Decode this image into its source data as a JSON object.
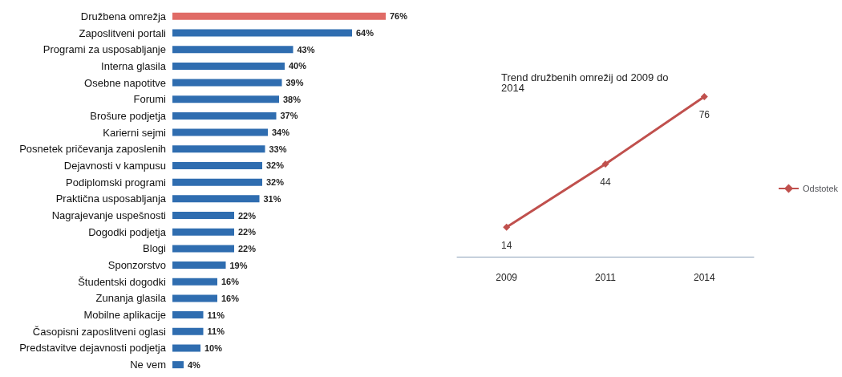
{
  "chart_data": [
    {
      "type": "bar",
      "orientation": "horizontal",
      "tick_labels": "y",
      "legend": false,
      "categories": [
        "Družbena omrežja",
        "Zaposlitveni portali",
        "Programi za usposabljanje",
        "Interna glasila",
        "Osebne napotitve",
        "Forumi",
        "Brošure podjetja",
        "Karierni sejmi",
        "Posnetek pričevanja zaposlenih",
        "Dejavnosti v kampusu",
        "Podiplomski programi",
        "Praktična usposabljanja",
        "Nagrajevanje uspešnosti",
        "Dogodki podjetja",
        "Blogi",
        "Sponzorstvo",
        "Študentski dogodki",
        "Zunanja glasila",
        "Mobilne aplikacije",
        "Časopisni zaposlitveni oglasi",
        "Predstavitve dejavnosti podjetja",
        "Ne vem"
      ],
      "values": [
        76,
        64,
        43,
        40,
        39,
        38,
        37,
        34,
        33,
        32,
        32,
        31,
        22,
        22,
        22,
        19,
        16,
        16,
        11,
        11,
        10,
        4
      ],
      "value_labels": [
        "76%",
        "64%",
        "43%",
        "40%",
        "39%",
        "38%",
        "37%",
        "34%",
        "33%",
        "32%",
        "32%",
        "31%",
        "22%",
        "22%",
        "22%",
        "19%",
        "16%",
        "16%",
        "11%",
        "11%",
        "10%",
        "4%"
      ],
      "colors": [
        "#e06b66",
        "#2f6db0",
        "#2f6db0",
        "#2f6db0",
        "#2f6db0",
        "#2f6db0",
        "#2f6db0",
        "#2f6db0",
        "#2f6db0",
        "#2f6db0",
        "#2f6db0",
        "#2f6db0",
        "#2f6db0",
        "#2f6db0",
        "#2f6db0",
        "#2f6db0",
        "#2f6db0",
        "#2f6db0",
        "#2f6db0",
        "#2f6db0",
        "#2f6db0",
        "#2f6db0"
      ]
    },
    {
      "type": "line",
      "title": "Trend družbenih omrežij od 2009 do 2014",
      "tick_labels": "x",
      "legend": "right",
      "marker": "diamond",
      "data_labels": true,
      "categories": [
        "2009",
        "2011",
        "2014"
      ],
      "series": [
        {
          "name": "Odstotek",
          "color": "#c0504d",
          "values": [
            14,
            44,
            76
          ]
        }
      ]
    }
  ]
}
